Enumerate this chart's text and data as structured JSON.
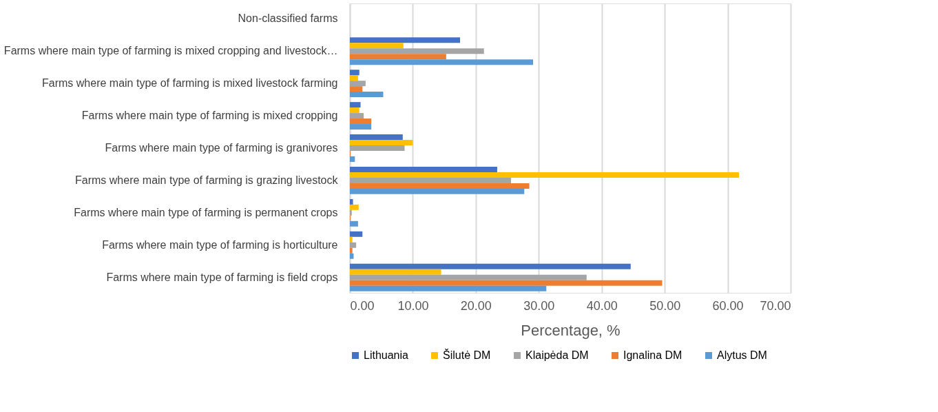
{
  "chart_data": {
    "type": "bar",
    "orientation": "horizontal",
    "xlabel": "Percentage, %",
    "categories": [
      "Non-classified farms",
      "Farms where main type of farming is mixed cropping and livestock…",
      "Farms where main type of farming is mixed livestock farming",
      "Farms where main type of farming is mixed cropping",
      "Farms where main type of farming is granivores",
      "Farms where main type of farming is grazing livestock",
      "Farms where main type of farming is permanent crops",
      "Farms where main type of farming is horticulture",
      "Farms where main type of farming is field crops"
    ],
    "series": [
      {
        "name": "Lithuania",
        "color": "#4472c4",
        "values": [
          0,
          17.5,
          1.5,
          1.7,
          8.4,
          23.4,
          0.5,
          2.0,
          44.6
        ]
      },
      {
        "name": "Šilutė DM",
        "color": "#ffc000",
        "values": [
          0,
          8.5,
          1.3,
          1.5,
          10.0,
          61.8,
          1.4,
          0.4,
          14.5
        ]
      },
      {
        "name": "Klaipėda DM",
        "color": "#a5a5a5",
        "values": [
          0,
          21.3,
          2.5,
          2.2,
          8.7,
          25.6,
          0.3,
          1.0,
          37.6
        ]
      },
      {
        "name": "Ignalina DM",
        "color": "#ed7d31",
        "values": [
          0,
          15.3,
          2.0,
          3.4,
          0.1,
          28.5,
          0.1,
          0.4,
          49.6
        ]
      },
      {
        "name": "Alytus DM",
        "color": "#5b9bd5",
        "values": [
          0,
          29.1,
          5.3,
          3.4,
          0.8,
          27.7,
          1.3,
          0.6,
          31.2
        ]
      }
    ],
    "xlim": [
      0,
      70
    ],
    "xticks": [
      {
        "value": 0,
        "label": "0.00"
      },
      {
        "value": 10,
        "label": "10.00"
      },
      {
        "value": 20,
        "label": "20.00"
      },
      {
        "value": 30,
        "label": "30.00"
      },
      {
        "value": 40,
        "label": "40.00"
      },
      {
        "value": 50,
        "label": "50.00"
      },
      {
        "value": 60,
        "label": "60.00"
      },
      {
        "value": 70,
        "label": "70.00"
      }
    ],
    "grid": "x",
    "legend": "bottom"
  }
}
